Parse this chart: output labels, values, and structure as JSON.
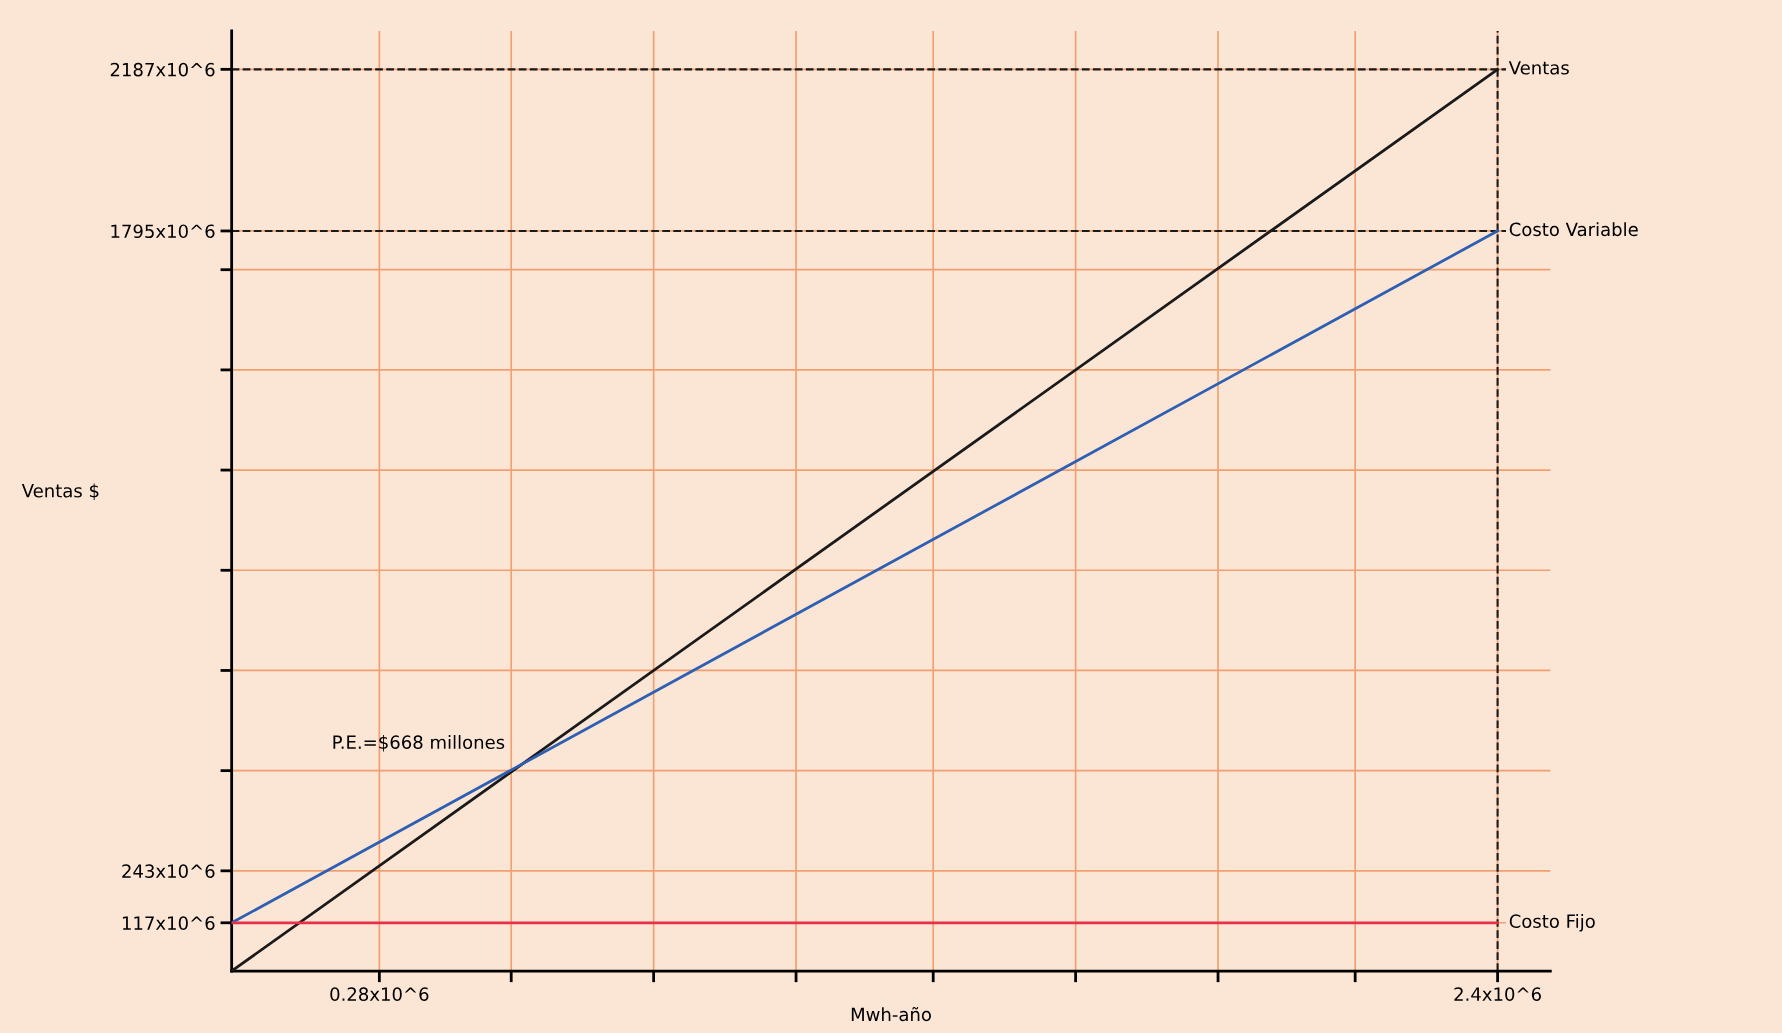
{
  "chart_data": {
    "type": "line",
    "xlabel": "Mwh-año",
    "ylabel": "Ventas $",
    "x": [
      0,
      2400000
    ],
    "series": [
      {
        "name": "Ventas",
        "color": "#1a1a1a",
        "values": [
          0,
          2187000000
        ]
      },
      {
        "name": "Costo Variable",
        "color": "#2f5fb3",
        "values": [
          117000000,
          1795000000
        ]
      },
      {
        "name": "Costo Fijo",
        "color": "#e8304a",
        "values": [
          117000000,
          117000000
        ]
      }
    ],
    "xlim": [
      0,
      2500000
    ],
    "ylim": [
      0,
      2280000000
    ],
    "xticks": [
      {
        "value": 280000,
        "label": "0.28x10^6"
      },
      {
        "value": 530000,
        "label": null
      },
      {
        "value": 800000,
        "label": null
      },
      {
        "value": 1070000,
        "label": null
      },
      {
        "value": 1330000,
        "label": null
      },
      {
        "value": 1600000,
        "label": null
      },
      {
        "value": 1870000,
        "label": null
      },
      {
        "value": 2130000,
        "label": null
      },
      {
        "value": 2400000,
        "label": "2.4x10^6"
      }
    ],
    "yticks": [
      {
        "value": 117000000,
        "label": "117x10^6"
      },
      {
        "value": 243000000,
        "label": "243x10^6"
      },
      {
        "value": 486000000,
        "label": null
      },
      {
        "value": 729000000,
        "label": null
      },
      {
        "value": 972000000,
        "label": null
      },
      {
        "value": 1215000000,
        "label": null
      },
      {
        "value": 1458000000,
        "label": null
      },
      {
        "value": 1701000000,
        "label": null
      },
      {
        "value": 1795000000,
        "label": "1795x10^6"
      },
      {
        "value": 2187000000,
        "label": "2187x10^6"
      }
    ],
    "ref_lines": [
      {
        "axis": "y",
        "value": 2187000000,
        "label": null,
        "color": "#1a1a1a",
        "line_style": "dashed"
      },
      {
        "axis": "y",
        "value": 1795000000,
        "label": null,
        "color": "#1a1a1a",
        "line_style": "dashed"
      },
      {
        "axis": "x",
        "value": 2400000,
        "label": null,
        "color": "#1a1a1a",
        "line_style": "dashed"
      }
    ],
    "annotations": [
      {
        "text": "P.E.=$668 millones",
        "x": 550000,
        "y": 503000000
      }
    ],
    "grid": true,
    "legend": false,
    "marker": "none",
    "line_style": "solid"
  }
}
